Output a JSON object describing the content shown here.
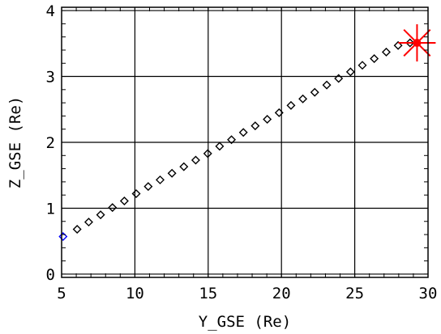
{
  "chart_data": {
    "type": "scatter",
    "title": "",
    "xlabel": "Y_GSE (Re)",
    "ylabel": "Z_GSE (Re)",
    "xlim": [
      5,
      30
    ],
    "ylim": [
      -0.05,
      4.05
    ],
    "xticks": [
      5,
      10,
      15,
      20,
      25,
      30
    ],
    "yticks": [
      0,
      1,
      2,
      3,
      4
    ],
    "xtick_labels": [
      "5",
      "10",
      "15",
      "20",
      "25",
      "30"
    ],
    "ytick_labels": [
      "0",
      "1",
      "2",
      "3",
      "4"
    ],
    "grid": true,
    "series": [
      {
        "marker": "diamond",
        "color": "#000000",
        "x": [
          6.06,
          6.85,
          7.66,
          8.47,
          9.28,
          10.09,
          10.91,
          11.72,
          12.53,
          13.34,
          14.15,
          14.97,
          15.78,
          16.59,
          17.4,
          18.21,
          19.03,
          19.84,
          20.65,
          21.46,
          22.27,
          23.09,
          23.9,
          24.71,
          25.52,
          26.33,
          27.15,
          27.96,
          28.77
        ],
        "y": [
          0.68,
          0.79,
          0.9,
          1.01,
          1.11,
          1.22,
          1.33,
          1.43,
          1.53,
          1.63,
          1.73,
          1.83,
          1.94,
          2.04,
          2.15,
          2.25,
          2.35,
          2.45,
          2.56,
          2.66,
          2.76,
          2.87,
          2.97,
          3.07,
          3.17,
          3.27,
          3.37,
          3.47,
          3.51
        ]
      },
      {
        "marker": "diamond",
        "color": "#0000ff",
        "x": [
          5.1
        ],
        "y": [
          0.57
        ]
      },
      {
        "marker": "star-dot",
        "color": "#ff0000",
        "x": [
          29.25
        ],
        "y": [
          3.51
        ]
      }
    ]
  }
}
